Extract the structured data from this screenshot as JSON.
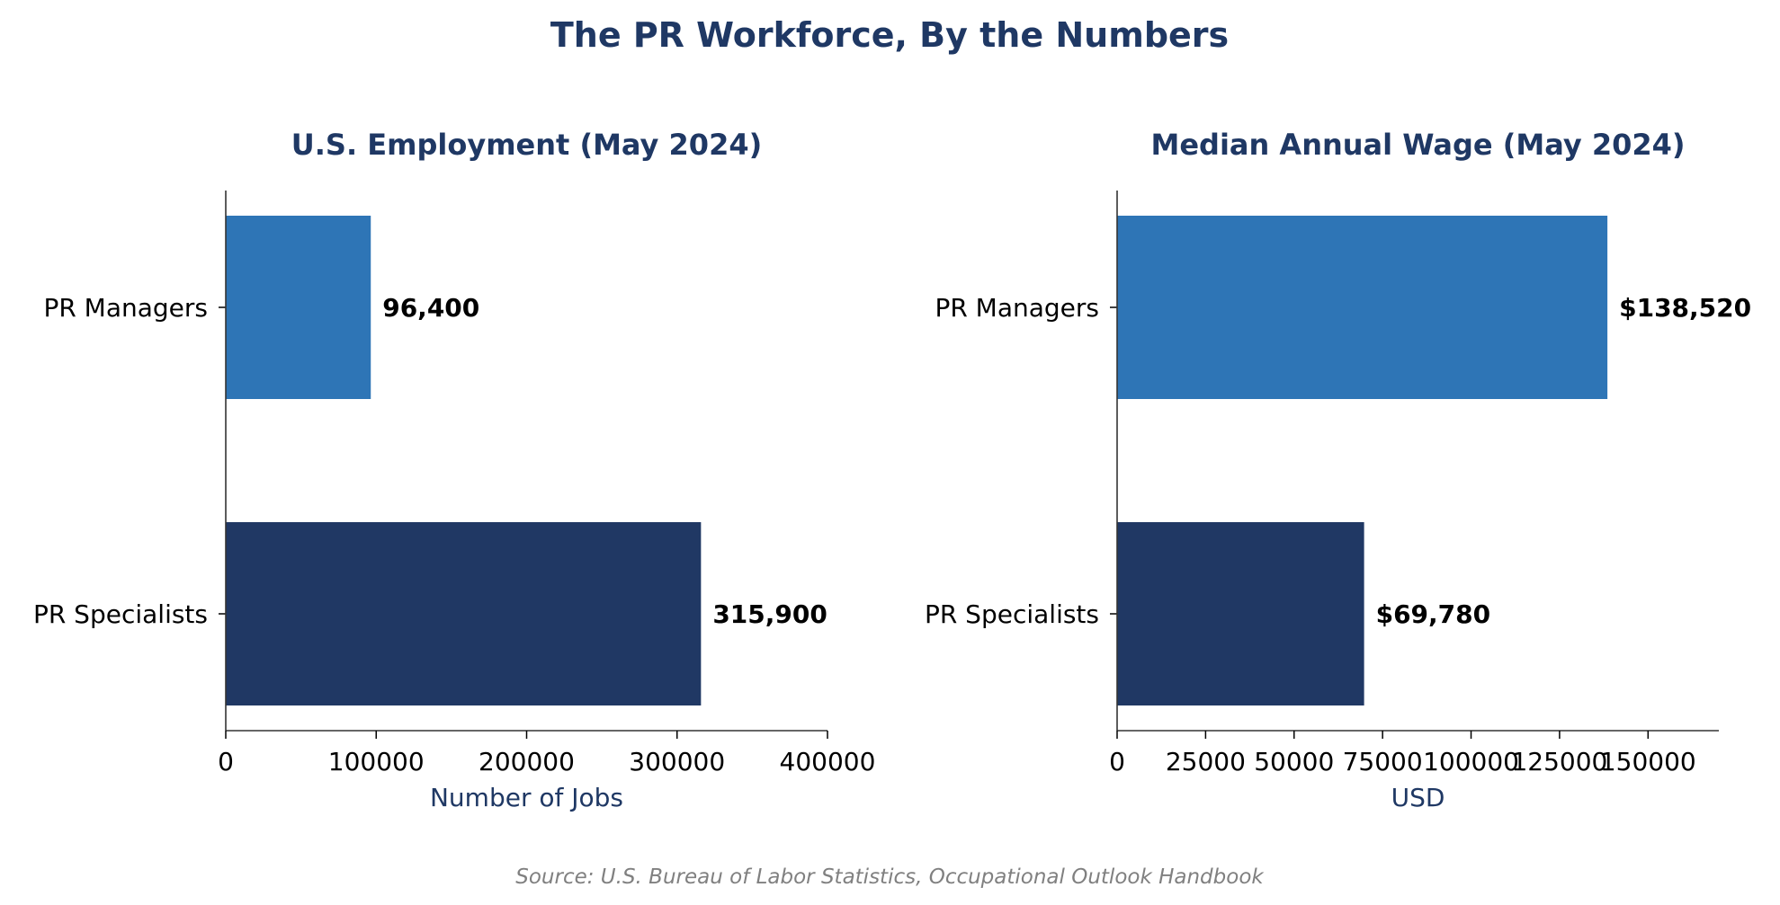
{
  "title": "The PR Workforce, By the Numbers",
  "source": "Source: U.S. Bureau of Labor Statistics, Occupational Outlook Handbook",
  "colors": {
    "title": "#1F3864",
    "managers": "#2E75B6",
    "specialists": "#203864"
  },
  "chart_data": [
    {
      "type": "bar",
      "orientation": "horizontal",
      "title": "U.S. Employment (May 2024)",
      "xlabel": "Number of Jobs",
      "categories": [
        "PR Managers",
        "PR Specialists"
      ],
      "values": [
        96400,
        315900
      ],
      "data_labels": [
        "96,400",
        "315,900"
      ],
      "xlim": [
        0,
        400000
      ],
      "xticks": [
        0,
        100000,
        200000,
        300000,
        400000
      ],
      "xtick_labels": [
        "0",
        "100000",
        "200000",
        "300000",
        "400000"
      ],
      "grid": false
    },
    {
      "type": "bar",
      "orientation": "horizontal",
      "title": "Median Annual Wage (May 2024)",
      "xlabel": "USD",
      "categories": [
        "PR Managers",
        "PR Specialists"
      ],
      "values": [
        138520,
        69780
      ],
      "data_labels": [
        "$138,520",
        "$69,780"
      ],
      "xlim": [
        0,
        170000
      ],
      "xticks": [
        0,
        25000,
        50000,
        75000,
        100000,
        125000,
        150000
      ],
      "xtick_labels": [
        "0",
        "25000",
        "50000",
        "75000",
        "100000",
        "125000",
        "150000"
      ],
      "grid": false
    }
  ]
}
